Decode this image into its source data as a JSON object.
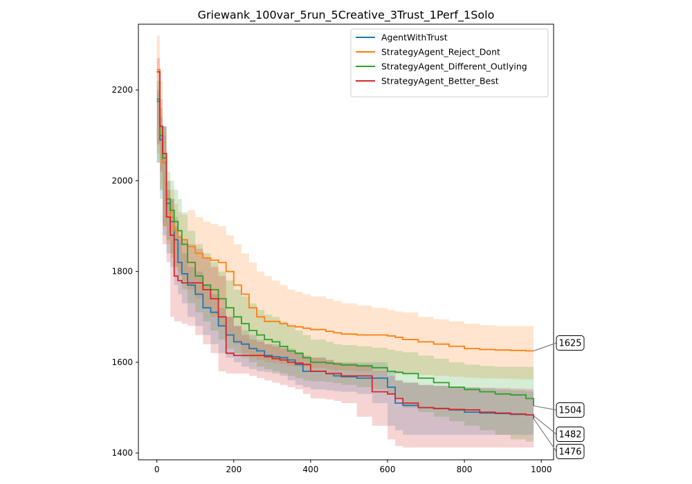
{
  "chart_data": {
    "type": "line",
    "title": "Griewank_100var_5run_5Creative_3Trust_1Perf_1Solo",
    "xlabel": "",
    "ylabel": "",
    "xlim": [
      -48,
      1032
    ],
    "ylim": [
      1385,
      2345
    ],
    "xticks": [
      0,
      200,
      400,
      600,
      800,
      1000
    ],
    "yticks": [
      1400,
      1600,
      1800,
      2000,
      2200
    ],
    "legend_position": "top-right",
    "grid": false,
    "series": [
      {
        "name": "AgentWithTrust",
        "color": "#1f77b4",
        "final_label": "1482",
        "x": [
          0,
          8,
          15,
          25,
          35,
          45,
          55,
          65,
          80,
          100,
          120,
          140,
          160,
          180,
          200,
          220,
          240,
          260,
          280,
          300,
          320,
          340,
          360,
          380,
          400,
          440,
          460,
          480,
          520,
          560,
          600,
          620,
          640,
          680,
          720,
          760,
          800,
          840,
          880,
          920,
          960,
          980
        ],
        "y": [
          2175,
          2090,
          2040,
          1950,
          1910,
          1870,
          1820,
          1795,
          1770,
          1750,
          1720,
          1710,
          1680,
          1660,
          1645,
          1640,
          1630,
          1625,
          1615,
          1612,
          1610,
          1605,
          1595,
          1580,
          1580,
          1575,
          1570,
          1568,
          1565,
          1565,
          1545,
          1510,
          1505,
          1500,
          1498,
          1495,
          1490,
          1488,
          1487,
          1485,
          1484,
          1482
        ],
        "lower": [
          2150,
          2040,
          1960,
          1880,
          1840,
          1810,
          1770,
          1750,
          1730,
          1700,
          1680,
          1660,
          1640,
          1620,
          1610,
          1600,
          1590,
          1585,
          1580,
          1578,
          1575,
          1570,
          1560,
          1550,
          1545,
          1540,
          1538,
          1536,
          1535,
          1530,
          1510,
          1460,
          1450,
          1440,
          1440,
          1440,
          1440,
          1440,
          1440,
          1440,
          1440,
          1440
        ],
        "upper": [
          2200,
          2140,
          2120,
          2000,
          1960,
          1920,
          1870,
          1840,
          1810,
          1800,
          1770,
          1750,
          1720,
          1700,
          1680,
          1670,
          1660,
          1650,
          1640,
          1640,
          1635,
          1630,
          1620,
          1610,
          1610,
          1605,
          1600,
          1600,
          1600,
          1600,
          1580,
          1560,
          1555,
          1550,
          1548,
          1546,
          1544,
          1542,
          1540,
          1538,
          1536,
          1535
        ]
      },
      {
        "name": "StrategyAgent_Reject_Dont",
        "color": "#ff7f0e",
        "final_label": "1625",
        "x": [
          0,
          8,
          15,
          25,
          35,
          45,
          55,
          65,
          80,
          100,
          120,
          140,
          160,
          180,
          200,
          220,
          240,
          260,
          280,
          300,
          320,
          340,
          360,
          380,
          400,
          440,
          460,
          480,
          520,
          560,
          600,
          620,
          640,
          680,
          720,
          760,
          800,
          840,
          880,
          920,
          960,
          980
        ],
        "y": [
          2245,
          2120,
          2040,
          1960,
          1920,
          1890,
          1875,
          1870,
          1855,
          1840,
          1830,
          1825,
          1820,
          1800,
          1770,
          1750,
          1720,
          1700,
          1690,
          1690,
          1685,
          1680,
          1678,
          1675,
          1672,
          1668,
          1665,
          1662,
          1660,
          1660,
          1658,
          1655,
          1650,
          1645,
          1640,
          1635,
          1630,
          1628,
          1627,
          1626,
          1625,
          1625
        ],
        "lower": [
          2200,
          2060,
          1980,
          1900,
          1860,
          1830,
          1810,
          1800,
          1780,
          1760,
          1740,
          1720,
          1700,
          1680,
          1660,
          1640,
          1620,
          1610,
          1605,
          1600,
          1598,
          1595,
          1592,
          1590,
          1590,
          1588,
          1585,
          1583,
          1582,
          1580,
          1578,
          1576,
          1575,
          1574,
          1572,
          1570,
          1568,
          1566,
          1565,
          1564,
          1563,
          1562
        ],
        "upper": [
          2320,
          2220,
          2100,
          2000,
          1980,
          1950,
          1930,
          1925,
          1935,
          1920,
          1910,
          1905,
          1900,
          1880,
          1860,
          1840,
          1820,
          1800,
          1790,
          1780,
          1770,
          1760,
          1755,
          1750,
          1745,
          1740,
          1735,
          1730,
          1725,
          1720,
          1715,
          1712,
          1710,
          1700,
          1695,
          1690,
          1685,
          1682,
          1680,
          1680,
          1680,
          1680
        ]
      },
      {
        "name": "StrategyAgent_Different_Outlying",
        "color": "#2ca02c",
        "final_label": "1504",
        "x": [
          0,
          8,
          15,
          25,
          35,
          45,
          55,
          65,
          80,
          100,
          120,
          140,
          160,
          180,
          200,
          220,
          240,
          260,
          280,
          300,
          320,
          340,
          360,
          380,
          400,
          440,
          460,
          480,
          520,
          560,
          600,
          620,
          640,
          680,
          720,
          760,
          800,
          840,
          880,
          920,
          960,
          980
        ],
        "y": [
          2180,
          2100,
          2050,
          1960,
          1935,
          1910,
          1890,
          1860,
          1820,
          1790,
          1770,
          1760,
          1740,
          1720,
          1700,
          1685,
          1670,
          1660,
          1650,
          1645,
          1635,
          1625,
          1620,
          1610,
          1600,
          1598,
          1596,
          1594,
          1592,
          1588,
          1580,
          1578,
          1575,
          1565,
          1555,
          1545,
          1540,
          1535,
          1530,
          1528,
          1520,
          1504
        ],
        "lower": [
          2140,
          2040,
          1980,
          1900,
          1870,
          1840,
          1810,
          1790,
          1760,
          1730,
          1710,
          1690,
          1670,
          1650,
          1630,
          1620,
          1610,
          1600,
          1590,
          1585,
          1580,
          1575,
          1570,
          1565,
          1560,
          1558,
          1556,
          1554,
          1550,
          1545,
          1540,
          1530,
          1520,
          1500,
          1490,
          1480,
          1470,
          1460,
          1450,
          1440,
          1430,
          1425
        ],
        "upper": [
          2220,
          2160,
          2120,
          2020,
          2000,
          1980,
          1960,
          1930,
          1890,
          1860,
          1840,
          1820,
          1800,
          1780,
          1760,
          1745,
          1730,
          1715,
          1705,
          1700,
          1690,
          1680,
          1670,
          1660,
          1650,
          1645,
          1640,
          1638,
          1635,
          1632,
          1628,
          1625,
          1622,
          1615,
          1608,
          1600,
          1595,
          1592,
          1590,
          1590,
          1590,
          1585
        ]
      },
      {
        "name": "StrategyAgent_Better_Best",
        "color": "#d62728",
        "final_label": "1476",
        "x": [
          0,
          8,
          15,
          25,
          35,
          45,
          55,
          65,
          80,
          100,
          120,
          140,
          160,
          180,
          200,
          220,
          240,
          260,
          280,
          300,
          320,
          340,
          360,
          380,
          400,
          440,
          460,
          480,
          520,
          560,
          600,
          620,
          640,
          680,
          720,
          760,
          800,
          840,
          880,
          920,
          960,
          980
        ],
        "y": [
          2240,
          2120,
          2060,
          1920,
          1880,
          1790,
          1780,
          1775,
          1775,
          1775,
          1760,
          1740,
          1700,
          1620,
          1615,
          1615,
          1615,
          1615,
          1612,
          1608,
          1605,
          1600,
          1598,
          1595,
          1580,
          1575,
          1575,
          1570,
          1570,
          1535,
          1530,
          1520,
          1510,
          1500,
          1498,
          1496,
          1495,
          1490,
          1488,
          1486,
          1484,
          1476
        ],
        "lower": [
          2200,
          2080,
          2020,
          1860,
          1820,
          1700,
          1690,
          1690,
          1685,
          1680,
          1660,
          1640,
          1620,
          1580,
          1575,
          1575,
          1575,
          1570,
          1565,
          1560,
          1555,
          1550,
          1545,
          1540,
          1530,
          1520,
          1518,
          1515,
          1510,
          1480,
          1460,
          1430,
          1415,
          1412,
          1412,
          1412,
          1412,
          1412,
          1412,
          1412,
          1412,
          1412
        ],
        "upper": [
          2270,
          2180,
          2120,
          1980,
          1960,
          1900,
          1880,
          1870,
          1860,
          1850,
          1830,
          1810,
          1790,
          1700,
          1680,
          1660,
          1650,
          1645,
          1640,
          1635,
          1630,
          1625,
          1620,
          1615,
          1610,
          1605,
          1600,
          1598,
          1595,
          1580,
          1570,
          1560,
          1555,
          1550,
          1548,
          1546,
          1545,
          1544,
          1543,
          1542,
          1541,
          1540
        ]
      }
    ]
  }
}
